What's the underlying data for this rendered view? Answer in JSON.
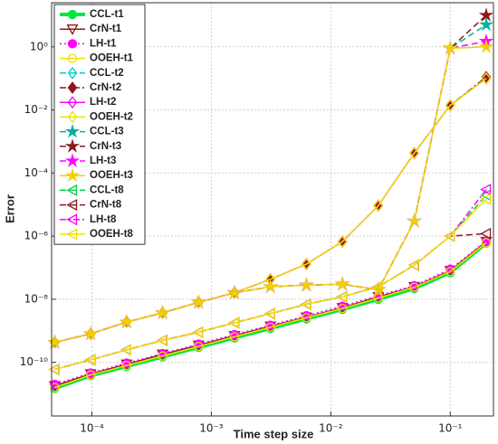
{
  "chart_data": {
    "type": "line",
    "xlabel": "Time step size",
    "ylabel": "Error",
    "xscale": "log",
    "yscale": "log",
    "grid": true,
    "legend": "upper left",
    "xlim": [
      4.6e-05,
      0.23
    ],
    "ylim": [
      2e-12,
      25
    ],
    "xticks": [
      {
        "value": 0.0001,
        "label": "10⁻⁴"
      },
      {
        "value": 0.001,
        "label": "10⁻³"
      },
      {
        "value": 0.01,
        "label": "10⁻²"
      },
      {
        "value": 0.1,
        "label": "10⁻¹"
      }
    ],
    "yticks": [
      {
        "value": 1e-10,
        "label": "10⁻¹⁰"
      },
      {
        "value": 1e-08,
        "label": "10⁻⁸"
      },
      {
        "value": 1e-06,
        "label": "10⁻⁶"
      },
      {
        "value": 0.0001,
        "label": "10⁻⁴"
      },
      {
        "value": 0.01,
        "label": "10⁻²"
      },
      {
        "value": 1,
        "label": "10⁰"
      }
    ],
    "x": [
      4.8828125e-05,
      9.765625e-05,
      0.0001953125,
      0.000390625,
      0.00078125,
      0.0015625,
      0.003125,
      0.00625,
      0.0125,
      0.025,
      0.05,
      0.1,
      0.2
    ],
    "series": [
      {
        "name": "CCL-t1",
        "color": "#00e640",
        "marker": "circle",
        "dash": "solid",
        "filled": true,
        "width": 4,
        "values": [
          1.5e-11,
          3.8e-11,
          7.5e-11,
          1.5e-10,
          3e-10,
          6e-10,
          1.2e-09,
          2.4e-09,
          4.8e-09,
          1e-08,
          2.2e-08,
          7e-08,
          6e-07
        ]
      },
      {
        "name": "CrN-t1",
        "color": "#8b1a1a",
        "marker": "triangle-down",
        "dash": "solid",
        "filled": false,
        "width": 1.5,
        "values": [
          1.8e-11,
          4.3e-11,
          8.7e-11,
          1.8e-10,
          3.5e-10,
          7e-10,
          1.4e-09,
          2.7e-09,
          5.4e-09,
          1.2e-08,
          2.5e-08,
          8e-08,
          6.7e-07
        ]
      },
      {
        "name": "LH-t1",
        "color": "#ff00ff",
        "marker": "circle",
        "dash": "dotted",
        "filled": true,
        "width": 1.5,
        "values": [
          2e-11,
          4.6e-11,
          9.5e-11,
          1.9e-10,
          3.8e-10,
          7.6e-10,
          1.5e-09,
          3e-09,
          6e-09,
          1.3e-08,
          2.7e-08,
          9e-08,
          7e-07
        ]
      },
      {
        "name": "OOEH-t1",
        "color": "#f0e000",
        "marker": "circle",
        "dash": "solid",
        "filled": false,
        "width": 1.5,
        "values": [
          1.6e-11,
          4e-11,
          8e-11,
          1.6e-10,
          3.2e-10,
          6.5e-10,
          1.3e-09,
          2.6e-09,
          5.1e-09,
          1.1e-08,
          2.4e-08,
          7.5e-08,
          6.2e-07
        ]
      },
      {
        "name": "CCL-t2",
        "color": "#00cccc",
        "marker": "diamond",
        "dash": "dashed",
        "filled": false,
        "width": 1.5,
        "values": [
          4.3e-10,
          8e-10,
          1.9e-09,
          3.7e-09,
          8e-09,
          1.6e-08,
          4.3e-08,
          1.3e-07,
          6.7e-07,
          9.3e-06,
          0.00043,
          0.014,
          0.1
        ]
      },
      {
        "name": "CrN-t2",
        "color": "#8b1a1a",
        "marker": "diamond",
        "dash": "dashdot",
        "filled": true,
        "width": 1.5,
        "values": [
          4.3e-10,
          8e-10,
          1.9e-09,
          3.7e-09,
          8e-09,
          1.6e-08,
          4.3e-08,
          1.3e-07,
          6.7e-07,
          9.3e-06,
          0.00043,
          0.014,
          0.11
        ]
      },
      {
        "name": "LH-t2",
        "color": "#ff00ff",
        "marker": "diamond",
        "dash": "solid",
        "filled": false,
        "width": 1.5,
        "values": [
          4.3e-10,
          8e-10,
          1.9e-09,
          3.7e-09,
          8e-09,
          1.6e-08,
          4.3e-08,
          1.3e-07,
          6.7e-07,
          9.3e-06,
          0.00043,
          0.014,
          0.1
        ]
      },
      {
        "name": "OOEH-t2",
        "color": "#f0e000",
        "marker": "diamond",
        "dash": "solid",
        "filled": false,
        "width": 1.5,
        "values": [
          4.3e-10,
          8e-10,
          1.9e-09,
          3.7e-09,
          8e-09,
          1.6e-08,
          4.3e-08,
          1.3e-07,
          6.7e-07,
          9.3e-06,
          0.00043,
          0.014,
          0.1
        ]
      },
      {
        "name": "CCL-t3",
        "color": "#00b3a0",
        "marker": "star",
        "dash": "dashed",
        "filled": true,
        "width": 1.5,
        "values": [
          4.3e-10,
          8e-10,
          1.9e-09,
          3.7e-09,
          8e-09,
          1.6e-08,
          2.5e-08,
          2.8e-08,
          3e-08,
          2e-08,
          3e-06,
          0.9,
          5
        ]
      },
      {
        "name": "CrN-t3",
        "color": "#8b1a1a",
        "marker": "star",
        "dash": "dashed",
        "filled": true,
        "width": 1.5,
        "values": [
          4.3e-10,
          8e-10,
          1.9e-09,
          3.7e-09,
          8e-09,
          1.6e-08,
          2.5e-08,
          2.8e-08,
          3e-08,
          2e-08,
          3e-06,
          0.9,
          10
        ]
      },
      {
        "name": "LH-t3",
        "color": "#ff00ff",
        "marker": "star",
        "dash": "dashed",
        "filled": true,
        "width": 1.5,
        "values": [
          4.3e-10,
          8e-10,
          1.9e-09,
          3.7e-09,
          8e-09,
          1.6e-08,
          2.5e-08,
          2.8e-08,
          3e-08,
          2e-08,
          3e-06,
          0.9,
          1.5
        ]
      },
      {
        "name": "OOEH-t3",
        "color": "#f0d000",
        "marker": "star",
        "dash": "solid",
        "filled": true,
        "width": 1.5,
        "values": [
          4.3e-10,
          8e-10,
          1.9e-09,
          3.7e-09,
          8e-09,
          1.6e-08,
          2.5e-08,
          2.8e-08,
          3e-08,
          2e-08,
          3e-06,
          0.9,
          1
        ]
      },
      {
        "name": "CCL-t8",
        "color": "#00cc44",
        "marker": "triangle-left",
        "dash": "dashed",
        "filled": false,
        "width": 1.5,
        "values": [
          6e-11,
          1.2e-10,
          2.5e-10,
          5e-10,
          9e-10,
          1.8e-09,
          3.5e-09,
          7e-09,
          1.2e-08,
          2.5e-08,
          1.2e-07,
          1e-06,
          2e-05
        ]
      },
      {
        "name": "CrN-t8",
        "color": "#8b1a1a",
        "marker": "triangle-left",
        "dash": "dashed",
        "filled": false,
        "width": 1.5,
        "values": [
          6e-11,
          1.2e-10,
          2.5e-10,
          5e-10,
          9e-10,
          1.8e-09,
          3.5e-09,
          7e-09,
          1.2e-08,
          2.5e-08,
          1.2e-07,
          1e-06,
          1.2e-06
        ]
      },
      {
        "name": "LH-t8",
        "color": "#ff00ff",
        "marker": "triangle-left",
        "dash": "dashdot",
        "filled": false,
        "width": 1.5,
        "values": [
          6e-11,
          1.2e-10,
          2.5e-10,
          5e-10,
          9e-10,
          1.8e-09,
          3.5e-09,
          7e-09,
          1.2e-08,
          2.5e-08,
          1.2e-07,
          1e-06,
          3e-05
        ]
      },
      {
        "name": "OOEH-t8",
        "color": "#f0e000",
        "marker": "triangle-left",
        "dash": "solid",
        "filled": false,
        "width": 1.5,
        "values": [
          6e-11,
          1.2e-10,
          2.5e-10,
          5e-10,
          9e-10,
          1.8e-09,
          3.5e-09,
          7e-09,
          1.2e-08,
          2.5e-08,
          1.2e-07,
          1e-06,
          1.5e-05
        ]
      }
    ]
  }
}
